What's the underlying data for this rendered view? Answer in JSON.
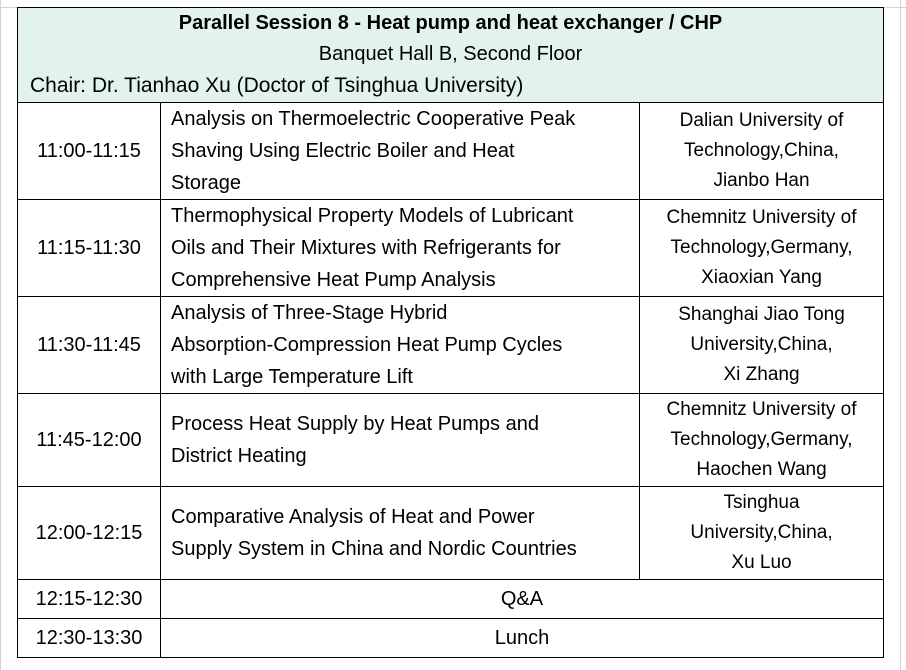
{
  "session": {
    "title": "Parallel Session 8 - Heat pump and heat exchanger / CHP",
    "venue": "Banquet Hall B, Second Floor",
    "chair": "Chair: Dr. Tianhao Xu (Doctor of Tsinghua University)"
  },
  "talks": [
    {
      "time": "11:00-11:15",
      "title_lines": [
        "Analysis on Thermoelectric Cooperative Peak",
        "Shaving Using Electric Boiler and Heat",
        "Storage"
      ],
      "affil_lines": [
        "Dalian University of",
        "Technology,China,",
        "Jianbo Han"
      ]
    },
    {
      "time": "11:15-11:30",
      "title_lines": [
        "Thermophysical Property Models of Lubricant",
        "Oils and Their Mixtures with Refrigerants for",
        "Comprehensive Heat Pump Analysis"
      ],
      "affil_lines": [
        "Chemnitz University of",
        "Technology,Germany,",
        "Xiaoxian Yang"
      ]
    },
    {
      "time": "11:30-11:45",
      "title_lines": [
        "Analysis of Three-Stage Hybrid",
        "Absorption-Compression Heat Pump Cycles",
        "with Large Temperature Lift"
      ],
      "affil_lines": [
        "Shanghai Jiao Tong",
        "University,China,",
        "Xi Zhang"
      ]
    },
    {
      "time": "11:45-12:00",
      "title_lines": [
        "Process Heat Supply by Heat Pumps and",
        "District Heating"
      ],
      "affil_lines": [
        "Chemnitz University of",
        "Technology,Germany,",
        "Haochen Wang"
      ]
    },
    {
      "time": "12:00-12:15",
      "title_lines": [
        "Comparative Analysis of Heat and Power",
        "Supply System in China and Nordic Countries"
      ],
      "affil_lines": [
        "Tsinghua",
        "University,China,",
        "Xu Luo"
      ]
    }
  ],
  "closing": [
    {
      "time": "12:15-12:30",
      "label": "Q&A"
    },
    {
      "time": "12:30-13:30",
      "label": "Lunch"
    }
  ],
  "colors": {
    "header_bg": "#e2f3ee",
    "border": "#000000"
  }
}
